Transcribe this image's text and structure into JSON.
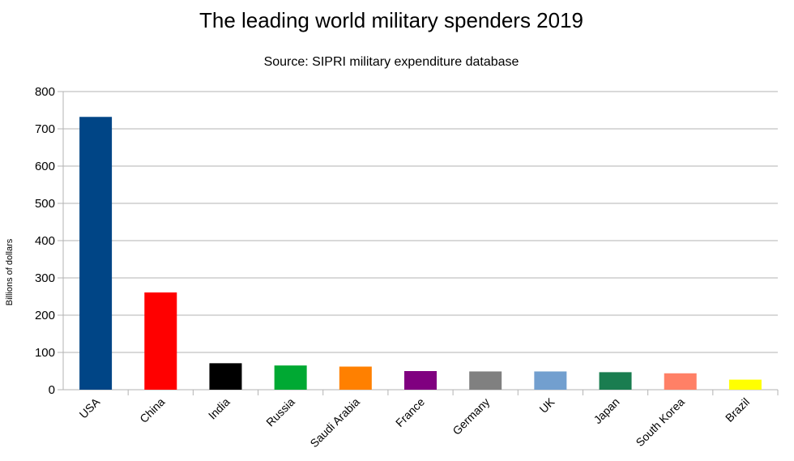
{
  "chart_data": {
    "type": "bar",
    "title": "The leading world military spenders 2019",
    "subtitle": "Source: SIPRI military expenditure database",
    "xlabel": "",
    "ylabel": "Billions of dollars",
    "ylim": [
      0,
      800
    ],
    "yticks": [
      0,
      100,
      200,
      300,
      400,
      500,
      600,
      700,
      800
    ],
    "grid": true,
    "legend": "none",
    "categories": [
      "USA",
      "China",
      "India",
      "Russia",
      "Saudi Arabia",
      "France",
      "Germany",
      "UK",
      "Japan",
      "South Korea",
      "Brazil"
    ],
    "values": [
      732,
      261,
      71,
      65,
      62,
      50,
      49,
      49,
      47,
      44,
      27
    ],
    "colors": [
      "#004586",
      "#ff0000",
      "#000000",
      "#00a933",
      "#ff8000",
      "#800080",
      "#808080",
      "#729fcf",
      "#1a7d50",
      "#ff8066",
      "#ffff00"
    ]
  }
}
